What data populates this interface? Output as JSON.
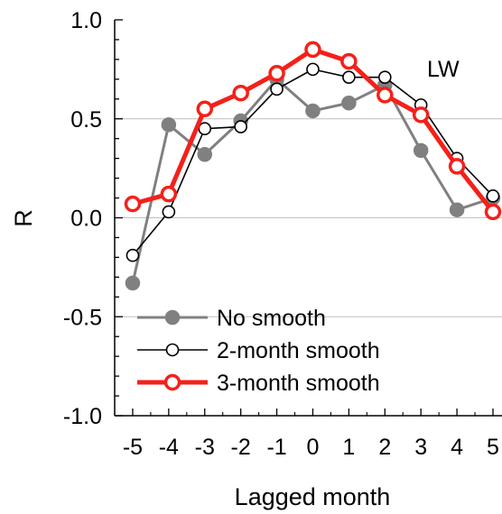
{
  "chart_data": {
    "type": "line",
    "title": "",
    "panel_label": "LW",
    "xlabel": "Lagged month",
    "ylabel": "R",
    "xlim": [
      -5.5,
      5
    ],
    "ylim": [
      -1.0,
      1.0
    ],
    "x": [
      -5,
      -4,
      -3,
      -2,
      -1,
      0,
      1,
      2,
      3,
      4,
      5
    ],
    "x_tick_labels": [
      "-5",
      "-4",
      "-3",
      "-2",
      "-1",
      "0",
      "1",
      "2",
      "3",
      "4",
      "5"
    ],
    "y_ticks": [
      1.0,
      0.5,
      0.0,
      -0.5,
      -1.0
    ],
    "y_tick_labels": [
      "1.0",
      "0.5",
      "0.0",
      "-0.5",
      "-1.0"
    ],
    "grid": "horizontal at y-ticks",
    "legend_position": "bottom-left",
    "series": [
      {
        "name": "No smooth",
        "color": "#808080",
        "marker": "filled-circle",
        "values": [
          -0.33,
          0.47,
          0.32,
          0.49,
          0.7,
          0.54,
          0.58,
          0.67,
          0.34,
          0.04,
          0.1
        ]
      },
      {
        "name": "2-month smooth",
        "color": "#000000",
        "marker": "open-circle",
        "values": [
          -0.19,
          0.03,
          0.45,
          0.46,
          0.65,
          0.75,
          0.71,
          0.71,
          0.57,
          0.3,
          0.11
        ]
      },
      {
        "name": "3-month smooth",
        "color": "#f5201a",
        "marker": "open-circle",
        "values": [
          0.07,
          0.12,
          0.55,
          0.63,
          0.73,
          0.85,
          0.79,
          0.62,
          0.52,
          0.26,
          0.03
        ]
      }
    ]
  }
}
